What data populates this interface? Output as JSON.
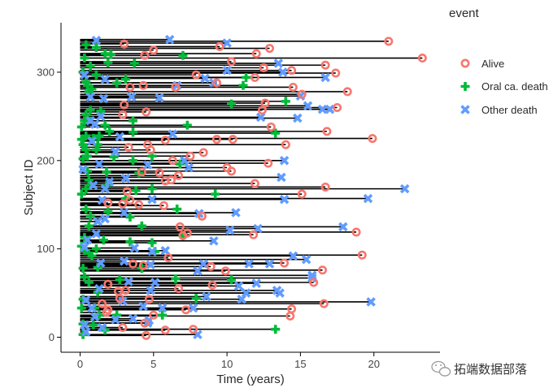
{
  "chart_data": {
    "type": "scatter",
    "title": "",
    "xlabel": "Time (years)",
    "ylabel": "Subject ID",
    "xlim": [
      -1.3,
      24.5
    ],
    "ylim": [
      -17,
      356
    ],
    "x_ticks": [
      "0",
      "5",
      "10",
      "15",
      "20"
    ],
    "y_ticks": [
      "0",
      "100",
      "200",
      "300"
    ],
    "x_tick_values": [
      0,
      5,
      10,
      15,
      20
    ],
    "y_tick_values": [
      0,
      100,
      200,
      300
    ],
    "grid": false,
    "legend_title": "event",
    "legend_position": "right",
    "segment_color": "#000000",
    "series": [
      {
        "name": "Alive",
        "marker": "open-circle",
        "color": "#F8766D",
        "points": [
          [
            21.0,
            335
          ],
          [
            23.3,
            316
          ],
          [
            12.9,
            327
          ],
          [
            12.0,
            321
          ],
          [
            9.5,
            329
          ],
          [
            4.4,
            319
          ],
          [
            3.0,
            332
          ],
          [
            5.0,
            325
          ],
          [
            10.3,
            312
          ],
          [
            16.7,
            308
          ],
          [
            17.4,
            299
          ],
          [
            12.5,
            305
          ],
          [
            14.4,
            302
          ],
          [
            11.9,
            294
          ],
          [
            9.3,
            288
          ],
          [
            7.9,
            297
          ],
          [
            18.2,
            278
          ],
          [
            14.5,
            283
          ],
          [
            15.1,
            275
          ],
          [
            6.5,
            283
          ],
          [
            4.3,
            285
          ],
          [
            3.4,
            283
          ],
          [
            17.5,
            260
          ],
          [
            12.4,
            257
          ],
          [
            12.6,
            265
          ],
          [
            3.0,
            263
          ],
          [
            4.5,
            255
          ],
          [
            2.9,
            252
          ],
          [
            13.0,
            238
          ],
          [
            16.8,
            233
          ],
          [
            19.9,
            225
          ],
          [
            10.4,
            224
          ],
          [
            9.3,
            224
          ],
          [
            5.8,
            223
          ],
          [
            3.3,
            215
          ],
          [
            14.0,
            218
          ],
          [
            4.6,
            218
          ],
          [
            4.8,
            212
          ],
          [
            6.3,
            200
          ],
          [
            7.5,
            205
          ],
          [
            8.4,
            209
          ],
          [
            12.8,
            197
          ],
          [
            10.3,
            188
          ],
          [
            10.0,
            192
          ],
          [
            4.2,
            187
          ],
          [
            5.4,
            186
          ],
          [
            5.8,
            177
          ],
          [
            6.2,
            178
          ],
          [
            6.7,
            183
          ],
          [
            11.9,
            174
          ],
          [
            16.7,
            170
          ],
          [
            15.1,
            162
          ],
          [
            3.2,
            165
          ],
          [
            3.4,
            155
          ],
          [
            2.9,
            151
          ],
          [
            1.9,
            152
          ],
          [
            5.7,
            149
          ],
          [
            4.0,
            150
          ],
          [
            8.3,
            137
          ],
          [
            6.8,
            125
          ],
          [
            7.3,
            118
          ],
          [
            7.0,
            115
          ],
          [
            11.8,
            116
          ],
          [
            18.8,
            119
          ],
          [
            19.2,
            93
          ],
          [
            13.9,
            84
          ],
          [
            9.9,
            75
          ],
          [
            8.9,
            80
          ],
          [
            6.0,
            90
          ],
          [
            3.6,
            83
          ],
          [
            4.3,
            81
          ],
          [
            16.5,
            76
          ],
          [
            15.9,
            62
          ],
          [
            9.0,
            59
          ],
          [
            6.7,
            55
          ],
          [
            3.1,
            53
          ],
          [
            2.6,
            52
          ],
          [
            1.9,
            60
          ],
          [
            2.7,
            44
          ],
          [
            4.7,
            43
          ],
          [
            16.6,
            38
          ],
          [
            14.4,
            32
          ],
          [
            14.3,
            24
          ],
          [
            7.2,
            31
          ],
          [
            1.9,
            31
          ],
          [
            1.8,
            28
          ],
          [
            4.4,
            16
          ],
          [
            7.7,
            9
          ],
          [
            5.8,
            8
          ],
          [
            2.9,
            11
          ],
          [
            5.0,
            25
          ],
          [
            4.5,
            2
          ],
          [
            1.5,
            38
          ]
        ]
      },
      {
        "name": "Oral ca. death",
        "marker": "plus",
        "color": "#00BA38",
        "points": [
          [
            0.4,
            331
          ],
          [
            1.1,
            328
          ],
          [
            2.1,
            320
          ],
          [
            1.7,
            321
          ],
          [
            7.0,
            319
          ],
          [
            0.3,
            316
          ],
          [
            0.7,
            307
          ],
          [
            1.9,
            311
          ],
          [
            3.7,
            310
          ],
          [
            0.2,
            300
          ],
          [
            1.1,
            297
          ],
          [
            0.5,
            285
          ],
          [
            0.4,
            289
          ],
          [
            0.6,
            278
          ],
          [
            0.8,
            281
          ],
          [
            11.3,
            294
          ],
          [
            11.1,
            285
          ],
          [
            3.1,
            292
          ],
          [
            2.5,
            288
          ],
          [
            10.3,
            264
          ],
          [
            14.0,
            267
          ],
          [
            0.7,
            257
          ],
          [
            0.5,
            248
          ],
          [
            0.4,
            252
          ],
          [
            1.4,
            256
          ],
          [
            0.3,
            245
          ],
          [
            0.1,
            238
          ],
          [
            2.0,
            233
          ],
          [
            1.7,
            240
          ],
          [
            3.6,
            245
          ],
          [
            3.6,
            232
          ],
          [
            7.3,
            240
          ],
          [
            13.3,
            231
          ],
          [
            0.4,
            228
          ],
          [
            0.1,
            224
          ],
          [
            0.9,
            225
          ],
          [
            1.3,
            228
          ],
          [
            0.2,
            218
          ],
          [
            1.2,
            218
          ],
          [
            0.4,
            212
          ],
          [
            1.1,
            212
          ],
          [
            0.5,
            205
          ],
          [
            0.2,
            202
          ],
          [
            2.3,
            204
          ],
          [
            3.6,
            200
          ],
          [
            4.9,
            205
          ],
          [
            6.8,
            196
          ],
          [
            4.0,
            186
          ],
          [
            0.5,
            188
          ],
          [
            1.8,
            187
          ],
          [
            0.6,
            178
          ],
          [
            0.7,
            172
          ],
          [
            1.8,
            172
          ],
          [
            0.1,
            162
          ],
          [
            0.4,
            168
          ],
          [
            3.1,
            157
          ],
          [
            4.9,
            168
          ],
          [
            3.8,
            166
          ],
          [
            9.2,
            162
          ],
          [
            0.4,
            145
          ],
          [
            0.7,
            137
          ],
          [
            1.9,
            142
          ],
          [
            0.6,
            126
          ],
          [
            3.4,
            136
          ],
          [
            4.2,
            126
          ],
          [
            6.6,
            145
          ],
          [
            7.0,
            115
          ],
          [
            1.6,
            110
          ],
          [
            3.4,
            108
          ],
          [
            4.9,
            107
          ],
          [
            0.3,
            113
          ],
          [
            0.1,
            103
          ],
          [
            0.3,
            98
          ],
          [
            0.6,
            95
          ],
          [
            1.1,
            100
          ],
          [
            0.8,
            92
          ],
          [
            5.1,
            97
          ],
          [
            1.2,
            79
          ],
          [
            0.2,
            78
          ],
          [
            4.2,
            78
          ],
          [
            0.3,
            68
          ],
          [
            0.6,
            62
          ],
          [
            2.7,
            65
          ],
          [
            6.5,
            66
          ],
          [
            10.3,
            65
          ],
          [
            1.2,
            51
          ],
          [
            0.2,
            43
          ],
          [
            7.9,
            44
          ],
          [
            1.0,
            33
          ],
          [
            0.1,
            33
          ],
          [
            1.3,
            25
          ],
          [
            2.5,
            25
          ],
          [
            5.6,
            25
          ],
          [
            0.2,
            15
          ],
          [
            0.9,
            14
          ],
          [
            1.7,
            8
          ],
          [
            13.3,
            9
          ],
          [
            0.2,
            3
          ]
        ]
      },
      {
        "name": "Other death",
        "marker": "x",
        "color": "#619CFF",
        "points": [
          [
            1.1,
            336
          ],
          [
            6.1,
            337
          ],
          [
            10.0,
            333
          ],
          [
            13.5,
            310
          ],
          [
            13.8,
            300
          ],
          [
            16.7,
            294
          ],
          [
            10.0,
            302
          ],
          [
            9.1,
            288
          ],
          [
            6.6,
            285
          ],
          [
            8.5,
            293
          ],
          [
            1.7,
            292
          ],
          [
            0.3,
            297
          ],
          [
            0.7,
            272
          ],
          [
            1.6,
            270
          ],
          [
            3.5,
            272
          ],
          [
            5.4,
            271
          ],
          [
            15.0,
            273
          ],
          [
            15.5,
            262
          ],
          [
            16.5,
            258
          ],
          [
            17.0,
            258
          ],
          [
            14.8,
            248
          ],
          [
            12.3,
            249
          ],
          [
            1.4,
            250
          ],
          [
            0.7,
            245
          ],
          [
            1.0,
            241
          ],
          [
            6.3,
            230
          ],
          [
            2.7,
            227
          ],
          [
            0.8,
            222
          ],
          [
            2.4,
            210
          ],
          [
            7.1,
            200
          ],
          [
            13.9,
            200
          ],
          [
            7.4,
            192
          ],
          [
            4.6,
            195
          ],
          [
            1.3,
            196
          ],
          [
            0.2,
            190
          ],
          [
            3.1,
            180
          ],
          [
            13.7,
            181
          ],
          [
            2.0,
            176
          ],
          [
            22.1,
            168
          ],
          [
            0.9,
            172
          ],
          [
            1.7,
            168
          ],
          [
            19.6,
            157
          ],
          [
            13.9,
            156
          ],
          [
            4.9,
            156
          ],
          [
            1.5,
            155
          ],
          [
            10.6,
            141
          ],
          [
            8.1,
            140
          ],
          [
            3.0,
            141
          ],
          [
            1.7,
            134
          ],
          [
            1.2,
            131
          ],
          [
            12.1,
            123
          ],
          [
            17.9,
            125
          ],
          [
            10.2,
            121
          ],
          [
            9.1,
            109
          ],
          [
            1.1,
            117
          ],
          [
            0.5,
            110
          ],
          [
            0.3,
            102
          ],
          [
            3.7,
            101
          ],
          [
            4.9,
            97
          ],
          [
            5.8,
            98
          ],
          [
            15.4,
            88
          ],
          [
            14.5,
            92
          ],
          [
            11.5,
            83
          ],
          [
            12.9,
            83
          ],
          [
            8.4,
            83
          ],
          [
            8.0,
            75
          ],
          [
            4.8,
            82
          ],
          [
            1.4,
            84
          ],
          [
            3.0,
            86
          ],
          [
            15.8,
            70
          ],
          [
            15.8,
            67
          ],
          [
            12.0,
            61
          ],
          [
            10.8,
            58
          ],
          [
            5.1,
            62
          ],
          [
            3.3,
            63
          ],
          [
            13.4,
            53
          ],
          [
            13.6,
            50
          ],
          [
            11.3,
            50
          ],
          [
            11.0,
            43
          ],
          [
            8.6,
            46
          ],
          [
            4.8,
            53
          ],
          [
            1.3,
            55
          ],
          [
            19.8,
            40
          ],
          [
            7.7,
            33
          ],
          [
            2.9,
            41
          ],
          [
            4.3,
            35
          ],
          [
            5.6,
            33
          ],
          [
            0.8,
            33
          ],
          [
            0.4,
            42
          ],
          [
            1.0,
            23
          ],
          [
            2.4,
            20
          ],
          [
            3.6,
            21
          ],
          [
            4.7,
            19
          ],
          [
            0.3,
            14
          ],
          [
            0.4,
            6
          ],
          [
            1.5,
            11
          ],
          [
            4.6,
            16
          ],
          [
            8.0,
            3
          ]
        ]
      }
    ]
  },
  "watermark": {
    "text": "拓端数据部落",
    "icon": "wechat-icon"
  }
}
